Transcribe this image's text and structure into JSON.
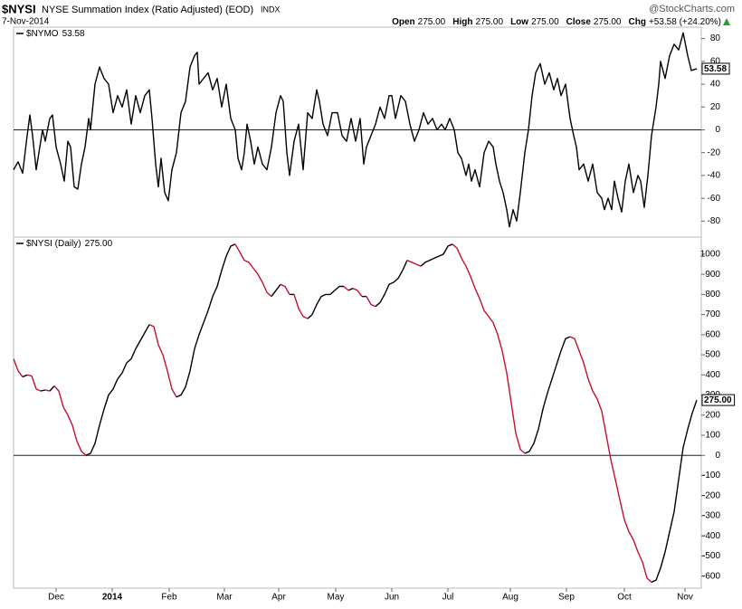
{
  "header": {
    "symbol": "$NYSI",
    "name": "NYSE Summation Index (Ratio Adjusted) (EOD)",
    "exchange": "INDX",
    "source": "@StockCharts.com",
    "date": "7-Nov-2014",
    "quote": [
      {
        "label": "Open",
        "value": "275.00"
      },
      {
        "label": "High",
        "value": "275.00"
      },
      {
        "label": "Low",
        "value": "275.00"
      },
      {
        "label": "Close",
        "value": "275.00"
      },
      {
        "label": "Chg",
        "value": "+53.58 (+24.20%)"
      }
    ]
  },
  "chart_data": [
    {
      "type": "line",
      "xlim": [
        0,
        755
      ],
      "ylim": [
        -94,
        90
      ],
      "yticks": [
        80,
        60,
        40,
        20,
        0,
        -20,
        -40,
        -60,
        -80
      ],
      "zero_line": true,
      "x": [
        0,
        5,
        10,
        15,
        18,
        21,
        25,
        28,
        32,
        35,
        40,
        43,
        47,
        52,
        56,
        60,
        63,
        67,
        71,
        75,
        79,
        83,
        85,
        90,
        95,
        100,
        105,
        110,
        115,
        120,
        125,
        130,
        135,
        140,
        145,
        150,
        153,
        157,
        160,
        163,
        167,
        171,
        175,
        180,
        185,
        190,
        195,
        200,
        203,
        205,
        210,
        215,
        220,
        225,
        230,
        235,
        240,
        245,
        248,
        252,
        255,
        258,
        262,
        266,
        270,
        275,
        280,
        285,
        290,
        295,
        298,
        302,
        305,
        310,
        315,
        320,
        325,
        330,
        335,
        338,
        342,
        347,
        352,
        358,
        363,
        368,
        373,
        378,
        383,
        387,
        390,
        395,
        400,
        405,
        410,
        415,
        418,
        422,
        428,
        433,
        438,
        443,
        448,
        453,
        458,
        463,
        468,
        473,
        477,
        482,
        487,
        491,
        495,
        500,
        503,
        506,
        510,
        515,
        520,
        525,
        530,
        533,
        537,
        541,
        545,
        548,
        552,
        556,
        560,
        565,
        569,
        573,
        577,
        582,
        587,
        592,
        597,
        601,
        605,
        610,
        615,
        619,
        622,
        625,
        630,
        635,
        640,
        645,
        650,
        653,
        657,
        661,
        664,
        668,
        672,
        676,
        680,
        685,
        690,
        693,
        697,
        701,
        705,
        710,
        713,
        715,
        720,
        725,
        730,
        735,
        740,
        745,
        749,
        755
      ],
      "series": [
        {
          "name": "$NYMO",
          "color": "#000000",
          "values": [
            -35,
            -28,
            -38,
            -5,
            13,
            -5,
            -35,
            -20,
            0,
            -10,
            10,
            13,
            -15,
            -30,
            -45,
            -10,
            -15,
            -50,
            -52,
            -30,
            -15,
            10,
            0,
            40,
            55,
            45,
            40,
            15,
            30,
            20,
            35,
            5,
            30,
            15,
            30,
            35,
            10,
            -30,
            -50,
            -25,
            -55,
            -62,
            -35,
            -20,
            15,
            25,
            55,
            65,
            68,
            40,
            45,
            50,
            35,
            45,
            20,
            40,
            10,
            0,
            -25,
            -35,
            -20,
            5,
            -10,
            -30,
            -15,
            -30,
            -35,
            -15,
            15,
            30,
            25,
            -20,
            -40,
            -10,
            5,
            -35,
            15,
            10,
            35,
            25,
            5,
            -5,
            15,
            15,
            -5,
            -10,
            10,
            -10,
            10,
            -30,
            -15,
            -5,
            5,
            20,
            10,
            30,
            30,
            10,
            30,
            25,
            5,
            -10,
            0,
            15,
            5,
            10,
            0,
            5,
            0,
            10,
            0,
            -20,
            -25,
            -40,
            -30,
            -45,
            -35,
            -50,
            -20,
            -10,
            -15,
            -30,
            -45,
            -55,
            -70,
            -85,
            -70,
            -80,
            -55,
            -20,
            0,
            30,
            50,
            58,
            40,
            50,
            35,
            45,
            30,
            40,
            10,
            -5,
            -15,
            -35,
            -30,
            -45,
            -30,
            -55,
            -60,
            -70,
            -60,
            -70,
            -45,
            -60,
            -72,
            -45,
            -30,
            -55,
            -40,
            -45,
            -68,
            -40,
            -5,
            20,
            40,
            60,
            45,
            65,
            75,
            70,
            85,
            65,
            52,
            53.58
          ]
        }
      ]
    },
    {
      "type": "line",
      "xlim": [
        0,
        755
      ],
      "ylim": [
        -660,
        1085
      ],
      "yticks": [
        1000,
        900,
        800,
        700,
        600,
        500,
        400,
        300,
        200,
        100,
        0,
        -100,
        -200,
        -300,
        -400,
        -500,
        -600
      ],
      "zero_line": true,
      "xticks": [
        {
          "value": 47,
          "label": "Dec"
        },
        {
          "value": 109,
          "label": "2014",
          "bold": true
        },
        {
          "value": 172,
          "label": "Feb"
        },
        {
          "value": 233,
          "label": "Mar"
        },
        {
          "value": 293,
          "label": "Apr"
        },
        {
          "value": 356,
          "label": "May"
        },
        {
          "value": 418,
          "label": "Jun"
        },
        {
          "value": 480,
          "label": "Jul"
        },
        {
          "value": 549,
          "label": "Aug"
        },
        {
          "value": 611,
          "label": "Sep"
        },
        {
          "value": 675,
          "label": "Oct"
        },
        {
          "value": 742,
          "label": "Nov"
        }
      ],
      "x": [
        0,
        5,
        10,
        15,
        20,
        25,
        30,
        35,
        40,
        45,
        50,
        55,
        60,
        65,
        70,
        75,
        80,
        85,
        90,
        95,
        100,
        105,
        110,
        115,
        120,
        125,
        130,
        135,
        140,
        145,
        150,
        155,
        160,
        165,
        170,
        175,
        180,
        185,
        190,
        195,
        200,
        205,
        210,
        215,
        220,
        225,
        230,
        235,
        240,
        245,
        250,
        255,
        260,
        265,
        270,
        275,
        280,
        285,
        290,
        295,
        300,
        305,
        310,
        315,
        320,
        325,
        330,
        335,
        340,
        345,
        350,
        355,
        360,
        365,
        370,
        375,
        380,
        385,
        390,
        395,
        400,
        405,
        410,
        415,
        420,
        425,
        430,
        435,
        440,
        445,
        450,
        455,
        460,
        465,
        470,
        475,
        480,
        485,
        490,
        495,
        500,
        505,
        510,
        515,
        520,
        525,
        530,
        535,
        540,
        545,
        550,
        555,
        560,
        565,
        570,
        575,
        580,
        585,
        590,
        595,
        600,
        605,
        610,
        615,
        620,
        625,
        630,
        635,
        640,
        645,
        650,
        655,
        660,
        665,
        670,
        675,
        680,
        685,
        690,
        695,
        700,
        705,
        710,
        715,
        720,
        725,
        730,
        735,
        740,
        745,
        750,
        755
      ],
      "series": [
        {
          "name": "$NYSI (Daily)",
          "color": "#000000",
          "down_color": "#c8102e",
          "value_label": "275.00",
          "values": [
            480,
            420,
            390,
            400,
            395,
            330,
            320,
            325,
            320,
            345,
            320,
            240,
            200,
            150,
            70,
            20,
            0,
            10,
            60,
            150,
            230,
            300,
            330,
            380,
            410,
            460,
            480,
            530,
            570,
            610,
            650,
            640,
            550,
            500,
            420,
            330,
            290,
            300,
            340,
            420,
            530,
            600,
            660,
            720,
            790,
            840,
            920,
            990,
            1040,
            1050,
            1010,
            970,
            960,
            930,
            900,
            860,
            810,
            790,
            820,
            850,
            840,
            800,
            800,
            730,
            690,
            680,
            700,
            750,
            790,
            800,
            800,
            820,
            840,
            840,
            820,
            830,
            820,
            790,
            790,
            750,
            740,
            760,
            800,
            850,
            860,
            880,
            920,
            970,
            960,
            950,
            940,
            960,
            970,
            980,
            990,
            1000,
            1040,
            1050,
            1030,
            980,
            940,
            890,
            830,
            780,
            720,
            690,
            660,
            600,
            520,
            410,
            260,
            110,
            30,
            10,
            20,
            60,
            130,
            230,
            310,
            380,
            450,
            520,
            580,
            590,
            580,
            520,
            460,
            380,
            320,
            280,
            220,
            100,
            -20,
            -120,
            -220,
            -320,
            -380,
            -420,
            -480,
            -530,
            -610,
            -630,
            -620,
            -560,
            -480,
            -380,
            -280,
            -120,
            40,
            130,
            210,
            275
          ]
        }
      ]
    }
  ]
}
